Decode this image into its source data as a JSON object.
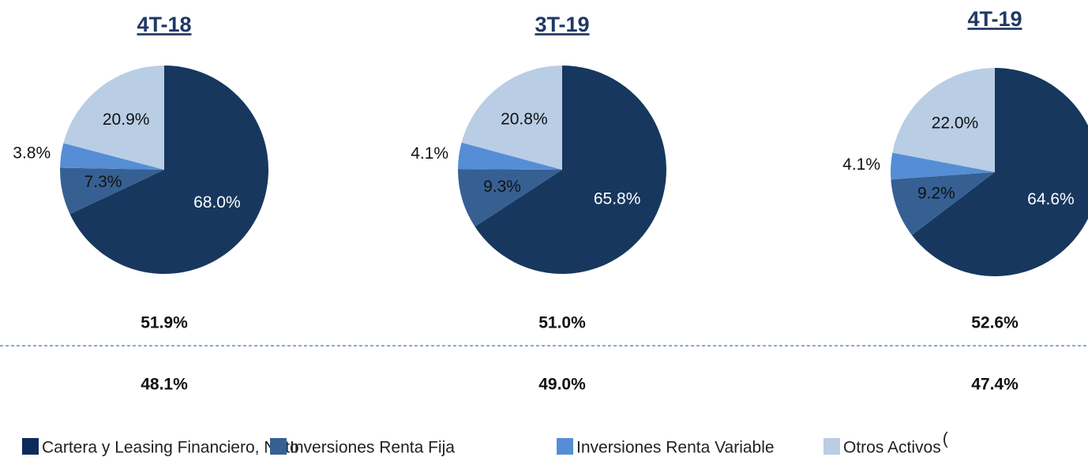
{
  "chart_data": [
    {
      "type": "pie",
      "title": "4T-18",
      "values": [
        68.0,
        7.3,
        3.8,
        20.9
      ],
      "value_labels": [
        "68.0%",
        "7.3%",
        "3.8%",
        "20.9%"
      ],
      "upper_value": 51.9,
      "upper_label": "51.9%",
      "lower_value": 48.1,
      "lower_label": "48.1%"
    },
    {
      "type": "pie",
      "title": "3T-19",
      "values": [
        65.8,
        9.3,
        4.1,
        20.8
      ],
      "value_labels": [
        "65.8%",
        "9.3%",
        "4.1%",
        "20.8%"
      ],
      "upper_value": 51.0,
      "upper_label": "51.0%",
      "lower_value": 49.0,
      "lower_label": "49.0%"
    },
    {
      "type": "pie",
      "title": "4T-19",
      "values": [
        64.6,
        9.2,
        4.1,
        22.0
      ],
      "value_labels": [
        "64.6%",
        "9.2%",
        "4.1%",
        "22.0%"
      ],
      "upper_value": 52.6,
      "upper_label": "52.6%",
      "lower_value": 47.4,
      "lower_label": "47.4%"
    }
  ],
  "legend": {
    "categories": [
      "Cartera y Leasing Financiero, Neto",
      "Inversiones Renta Fija",
      "Inversiones Renta Variable",
      "Otros Activos"
    ],
    "colors": [
      "#17375e",
      "#366092",
      "#558ed5",
      "#b9cde5"
    ],
    "note": "("
  }
}
